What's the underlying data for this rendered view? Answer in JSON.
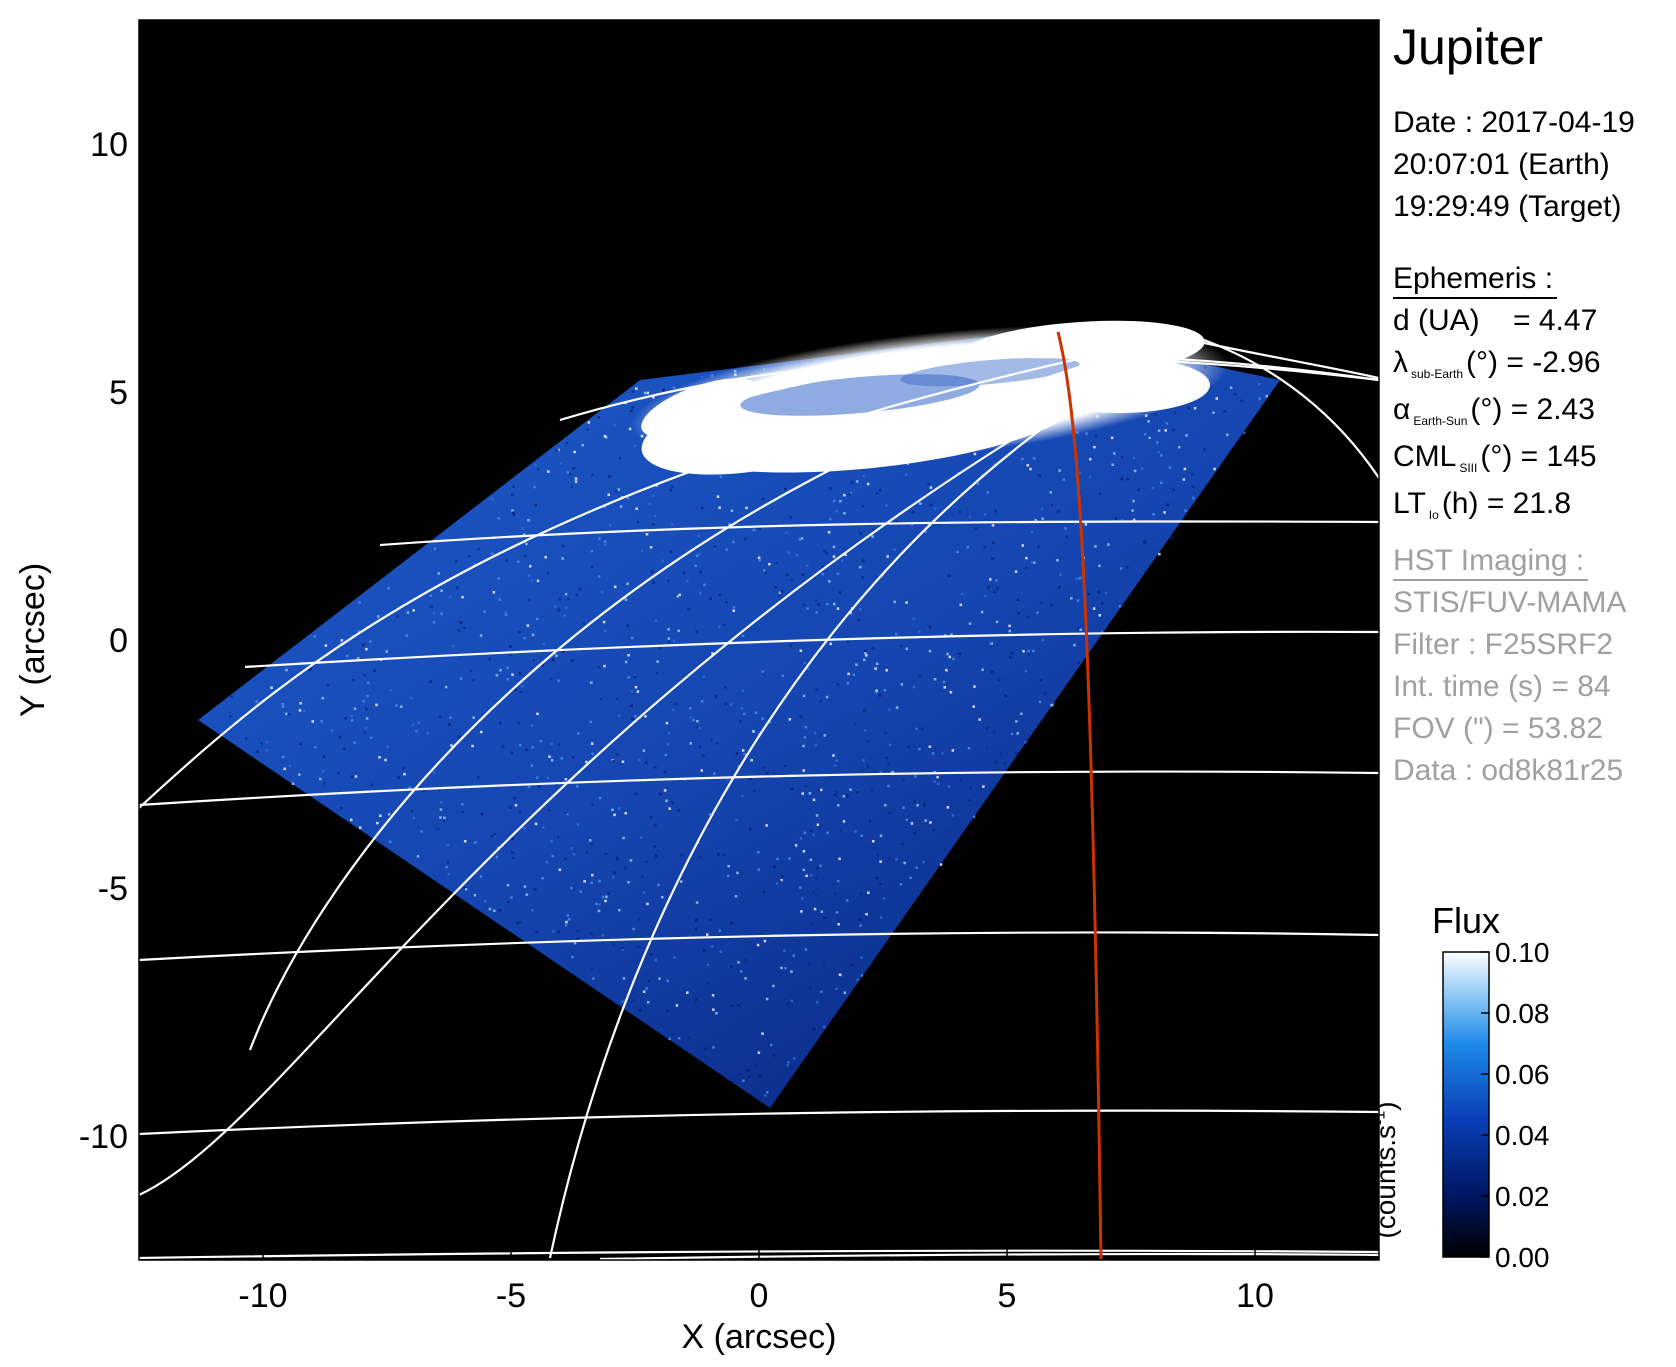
{
  "title": "Jupiter",
  "date_block": {
    "date": "Date : 2017-04-19",
    "earth_time": "20:07:01 (Earth)",
    "target_time": "19:29:49 (Target)"
  },
  "ephemeris": {
    "header": "Ephemeris :",
    "distance": "d (UA)    = 4.47",
    "lambda_symbol": "λ",
    "lambda_sub": "sub-Earth",
    "lambda_value": "(°) = -2.96",
    "alpha_symbol": "α",
    "alpha_sub": "Earth-Sun",
    "alpha_value": "(°) = 2.43",
    "cml_symbol": "CML",
    "cml_sub": "SIII",
    "cml_value": "(°) = 145",
    "lt_symbol": "LT",
    "lt_sub": "Io",
    "lt_value": "(h) = 21.8"
  },
  "hst": {
    "header": "HST Imaging :",
    "instrument": "STIS/FUV-MAMA",
    "filter": "Filter : F25SRF2",
    "int_time": "Int. time (s) = 84",
    "fov": "FOV (\") = 53.82",
    "data": "Data : od8k81r25"
  },
  "axes": {
    "xlabel": "X (arcsec)",
    "ylabel": "Y (arcsec)",
    "xlim": [
      -12.5,
      12.5
    ],
    "ylim": [
      -12.5,
      12.5
    ],
    "xticks": [
      -10,
      -5,
      0,
      5,
      10
    ],
    "yticks": [
      -10,
      -5,
      0,
      5,
      10
    ]
  },
  "colorbar": {
    "title": "Flux",
    "unit": "(counts.s",
    "unit_sup": "-1",
    "unit_close": ")",
    "ticks": [
      0.0,
      0.02,
      0.04,
      0.06,
      0.08,
      0.1
    ],
    "tick_labels": [
      "0.00",
      "0.02",
      "0.04",
      "0.06",
      "0.08",
      "0.10"
    ]
  },
  "colors": {
    "background": "#000000",
    "grid": "#ffffff",
    "footprint_line": "#cc3300",
    "aurora": "#ffffff",
    "disk_low": "#061a6b",
    "disk_high": "#4a8ee8"
  }
}
